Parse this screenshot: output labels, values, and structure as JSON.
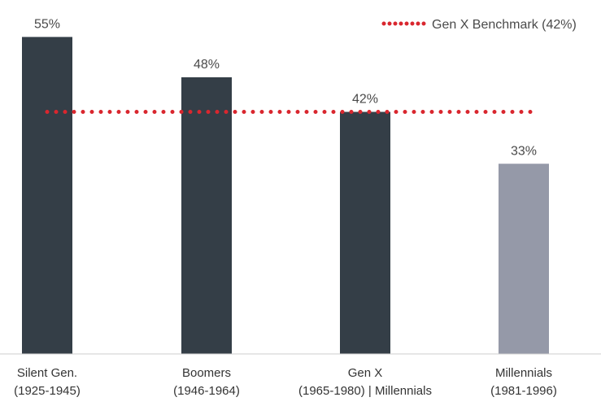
{
  "chart_data": {
    "type": "bar",
    "categories": [
      [
        "Silent Gen.",
        "(1925-1945)"
      ],
      [
        "Boomers",
        "(1946-1964)"
      ],
      [
        "Gen X",
        "(1965-1980) | Millennials"
      ],
      [
        "Millennials",
        "(1981-1996)"
      ]
    ],
    "values": [
      55,
      48,
      42,
      33
    ],
    "value_labels": [
      "55%",
      "48%",
      "42%",
      "33%"
    ],
    "bar_colors": [
      "#343e47",
      "#343e47",
      "#343e47",
      "#9599a8"
    ],
    "benchmark": {
      "name": "Gen X Benchmark (42%)",
      "value": 42,
      "color": "#d9262e",
      "style": "dotted"
    },
    "ylim": [
      0,
      60
    ],
    "grid": false,
    "legend_position": "top-right",
    "axis_color": "#cccccc"
  }
}
